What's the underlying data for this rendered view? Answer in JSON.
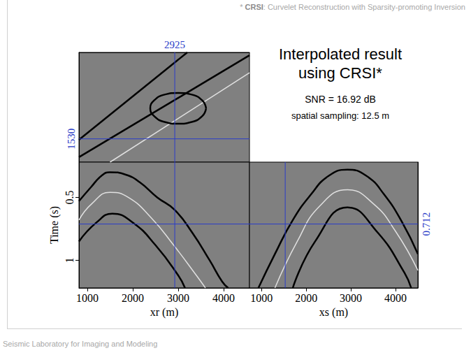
{
  "slide": {
    "note": {
      "marker": "*",
      "term": "CRSI",
      "rest": ": Curvelet Reconstruction with Sparsity-promoting Inversion"
    },
    "title": "Interpolated result using CRSI*",
    "snr": "SNR = 16.92 dB",
    "sampling": "spatial sampling: 12.5 m",
    "footer": "Seismic Laboratory for Imaging and Modeling"
  },
  "crosshair": {
    "xr": 2925,
    "xs": 1530,
    "time": 0.712,
    "color": "#2a3cc8"
  },
  "chart_data": [
    {
      "type": "line",
      "tick_labels": false,
      "xlim": [
        815,
        4570
      ],
      "ylim": [
        730,
        4500
      ],
      "series": [
        {
          "color": "#000000",
          "x": [
            815,
            3200
          ],
          "values": [
            1500,
            4500
          ]
        },
        {
          "color": "#000000",
          "x": [
            815,
            4570
          ],
          "values": [
            900,
            4400
          ]
        },
        {
          "color": "#e0e0e0",
          "x": [
            1500,
            4570
          ],
          "values": [
            730,
            3800
          ]
        },
        {
          "color": "#000000",
          "x": [
            3615,
            3530,
            3300,
            3000,
            2700,
            2470,
            2385,
            2470,
            2700,
            3000,
            3300,
            3530,
            3615
          ],
          "values": [
            2580,
            2850,
            3050,
            3110,
            3050,
            2850,
            2580,
            2310,
            2110,
            2050,
            2110,
            2310,
            2580
          ]
        }
      ]
    },
    {
      "type": "line",
      "tick_labels": true,
      "x_label": "xr (m)",
      "y_label": "Time (s)",
      "xlim": [
        815,
        4570
      ],
      "ylim": [
        1.22,
        0.22
      ],
      "xticks": [
        1000,
        2000,
        3000,
        4000
      ],
      "yticks": [
        0.5,
        1
      ],
      "series": [
        {
          "color": "#000000",
          "x": [
            815,
            1077,
            1307,
            1492,
            1846,
            2153,
            2538,
            2923,
            3308,
            3692,
            3969,
            4100
          ],
          "values": [
            0.53,
            0.42,
            0.33,
            0.3,
            0.32,
            0.38,
            0.5,
            0.6,
            0.78,
            1.0,
            1.17,
            1.22
          ]
        },
        {
          "color": "#e0e0e0",
          "x": [
            815,
            1100,
            1500,
            1900,
            2400,
            2900,
            3400,
            3600
          ],
          "values": [
            0.68,
            0.55,
            0.46,
            0.5,
            0.66,
            0.88,
            1.12,
            1.22
          ]
        },
        {
          "color": "#000000",
          "x": [
            815,
            1200,
            1550,
            2000,
            2500,
            3000,
            3150
          ],
          "values": [
            0.85,
            0.7,
            0.63,
            0.7,
            0.88,
            1.12,
            1.22
          ]
        }
      ]
    },
    {
      "type": "line",
      "tick_labels": "x",
      "x_label": "xs (m)",
      "xlim": [
        730,
        4500
      ],
      "ylim": [
        1.22,
        0.22
      ],
      "xticks": [
        1000,
        2000,
        3000,
        4000
      ],
      "series": [
        {
          "color": "#000000",
          "x": [
            930,
            1300,
            1700,
            2100,
            2500,
            2925,
            3350,
            3750,
            4150,
            4500
          ],
          "values": [
            1.22,
            0.95,
            0.68,
            0.48,
            0.33,
            0.28,
            0.33,
            0.48,
            0.7,
            0.95
          ]
        },
        {
          "color": "#e0e0e0",
          "x": [
            1300,
            1800,
            2300,
            2925,
            3500,
            4000,
            4500
          ],
          "values": [
            1.22,
            0.85,
            0.57,
            0.44,
            0.55,
            0.77,
            1.08
          ]
        },
        {
          "color": "#000000",
          "x": [
            1700,
            2200,
            2925,
            3600,
            4200,
            4350
          ],
          "values": [
            1.22,
            0.85,
            0.58,
            0.78,
            1.1,
            1.22
          ]
        }
      ]
    }
  ]
}
